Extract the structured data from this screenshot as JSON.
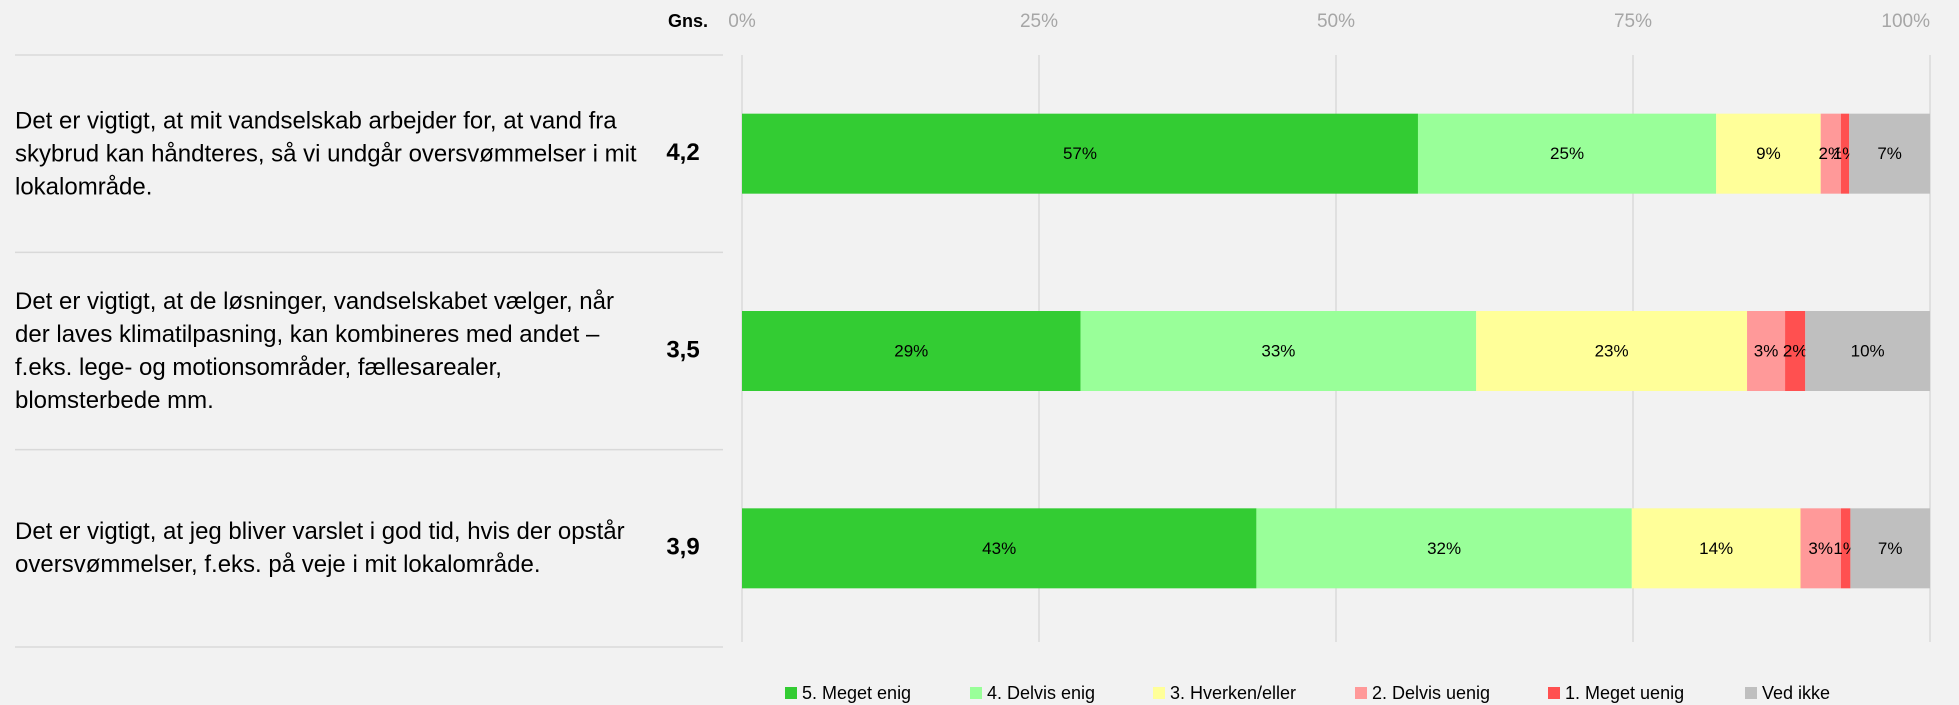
{
  "chart_data": {
    "type": "stacked_barh",
    "avg_header": "Gns.",
    "categories": [
      "Det er vigtigt, at mit vandselskab arbejder for, at vand fra skybrud kan håndteres, så vi undgår oversvømmelser i mit lokalområde.",
      "Det er vigtigt, at de løsninger, vandselskabet vælger, når der laves klimatilpasning, kan kombineres med andet – f.eks. lege- og motionsområder, fællesarealer, blomsterbede mm.",
      "Det er vigtigt, at jeg bliver varslet i god tid, hvis der opstår oversvømmelser, f.eks. på veje i mit lokalområde."
    ],
    "averages": [
      "4,2",
      "3,5",
      "3,9"
    ],
    "series": [
      {
        "name": "5. Meget enig",
        "color": "#33cc33",
        "values": [
          56.9,
          28.5,
          43.3
        ],
        "value_labels": [
          "57%",
          "29%",
          "43%"
        ]
      },
      {
        "name": "4. Delvis enig",
        "color": "#99ff99",
        "values": [
          25.1,
          33.3,
          31.6
        ],
        "value_labels": [
          "25%",
          "33%",
          "32%"
        ]
      },
      {
        "name": "3. Hverken/eller",
        "color": "#ffff99",
        "values": [
          8.8,
          22.8,
          14.2
        ],
        "value_labels": [
          "9%",
          "23%",
          "14%"
        ]
      },
      {
        "name": "2. Delvis uenig",
        "color": "#ff9999",
        "values": [
          1.7,
          3.2,
          3.4
        ],
        "value_labels": [
          "2%",
          "3%",
          "3%"
        ]
      },
      {
        "name": "1. Meget uenig",
        "color": "#ff5050",
        "values": [
          0.7,
          1.7,
          0.8
        ],
        "value_labels": [
          "1%",
          "2%",
          "1%"
        ]
      },
      {
        "name": "Ved ikke",
        "color": "#bfbfbf",
        "values": [
          6.8,
          10.5,
          6.7
        ],
        "value_labels": [
          "7%",
          "10%",
          "7%"
        ]
      }
    ],
    "xlim": [
      0,
      100
    ],
    "xticks": [
      {
        "value": 0,
        "label": "0%"
      },
      {
        "value": 25,
        "label": "25%"
      },
      {
        "value": 50,
        "label": "50%"
      },
      {
        "value": 75,
        "label": "75%"
      },
      {
        "value": 100,
        "label": "100%"
      }
    ],
    "grid": true,
    "legend": "bottom"
  }
}
